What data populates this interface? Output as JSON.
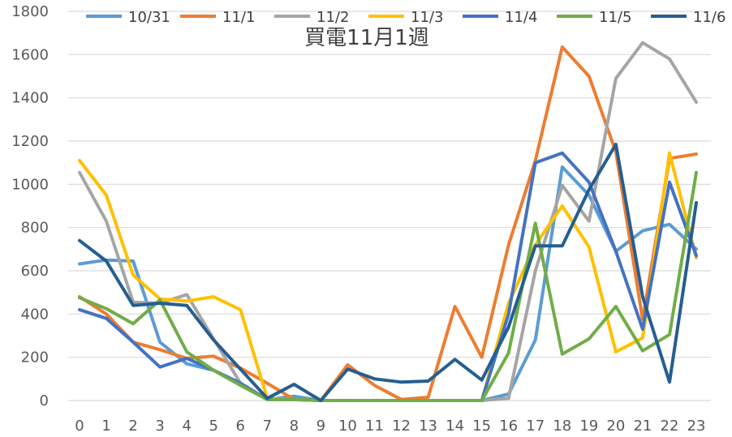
{
  "chart_data": {
    "type": "line",
    "title": "買電11月1週",
    "xlabel": "",
    "ylabel": "",
    "x": [
      0,
      1,
      2,
      3,
      4,
      5,
      6,
      7,
      8,
      9,
      10,
      11,
      12,
      13,
      14,
      15,
      16,
      17,
      18,
      19,
      20,
      21,
      22,
      23
    ],
    "ylim": [
      0,
      1800
    ],
    "yticks": [
      0,
      200,
      400,
      600,
      800,
      1000,
      1200,
      1400,
      1600,
      1800
    ],
    "grid": "horizontal",
    "legend_position": "top",
    "series": [
      {
        "name": "10/31",
        "color": "#5B9BD5",
        "values": [
          632,
          650,
          645,
          270,
          170,
          140,
          80,
          5,
          20,
          0,
          0,
          0,
          0,
          0,
          0,
          0,
          30,
          280,
          1080,
          950,
          690,
          785,
          815,
          700
        ]
      },
      {
        "name": "11/1",
        "color": "#ED7D31",
        "values": [
          480,
          400,
          270,
          235,
          195,
          205,
          150,
          80,
          5,
          0,
          165,
          70,
          5,
          15,
          435,
          200,
          720,
          1110,
          1635,
          1500,
          1150,
          375,
          1120,
          1140
        ]
      },
      {
        "name": "11/2",
        "color": "#A5A5A5",
        "values": [
          1055,
          830,
          455,
          450,
          490,
          285,
          80,
          5,
          5,
          0,
          0,
          0,
          0,
          0,
          0,
          0,
          10,
          600,
          995,
          830,
          1490,
          1655,
          1580,
          1380
        ]
      },
      {
        "name": "11/3",
        "color": "#FFC000",
        "values": [
          1110,
          950,
          580,
          470,
          460,
          480,
          420,
          10,
          5,
          0,
          0,
          0,
          0,
          0,
          0,
          0,
          450,
          720,
          900,
          710,
          225,
          290,
          1145,
          660
        ]
      },
      {
        "name": "11/4",
        "color": "#4472C4",
        "values": [
          420,
          380,
          270,
          155,
          195,
          140,
          80,
          5,
          5,
          0,
          0,
          0,
          0,
          0,
          0,
          0,
          400,
          1100,
          1145,
          1010,
          690,
          330,
          1010,
          670
        ]
      },
      {
        "name": "11/5",
        "color": "#70AD47",
        "values": [
          475,
          425,
          355,
          465,
          225,
          140,
          70,
          5,
          5,
          0,
          0,
          0,
          0,
          0,
          0,
          0,
          220,
          820,
          215,
          285,
          435,
          230,
          305,
          1055
        ]
      },
      {
        "name": "11/6",
        "color": "#255E91",
        "values": [
          740,
          645,
          440,
          450,
          440,
          280,
          145,
          10,
          75,
          0,
          145,
          100,
          85,
          90,
          190,
          95,
          340,
          715,
          715,
          975,
          1185,
          480,
          85,
          915
        ]
      }
    ]
  }
}
